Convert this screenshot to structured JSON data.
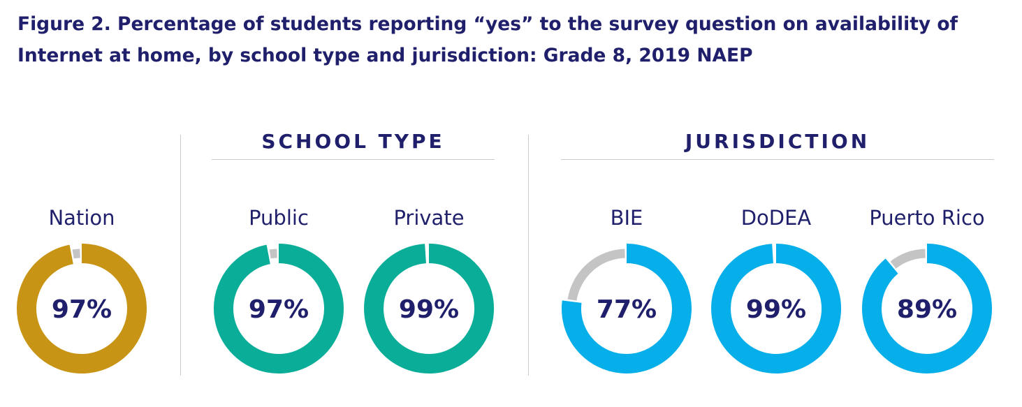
{
  "title": "Figure 2. Percentage of students reporting “yes” to the survey question on availability of Internet at home, by school type and jurisdiction: Grade 8, 2019 NAEP",
  "groups": {
    "school_type": "SCHOOL TYPE",
    "jurisdiction": "JURISDICTION"
  },
  "colors": {
    "text": "#1f1f6b",
    "remainder": "#c4c4c4",
    "nation": "#c89415",
    "school_type": "#0aae98",
    "jurisdiction": "#06aeea",
    "divider": "#c9cbd3"
  },
  "chart_data": {
    "type": "pie",
    "subtype": "donut",
    "title": "Figure 2. Percentage of students reporting “yes” to the survey question on availability of Internet at home, by school type and jurisdiction: Grade 8, 2019 NAEP",
    "categories": [
      "Nation",
      "Public",
      "Private",
      "BIE",
      "DoDEA",
      "Puerto Rico"
    ],
    "values": [
      97,
      97,
      99,
      77,
      99,
      89
    ],
    "value_labels": [
      "97%",
      "97%",
      "99%",
      "77%",
      "99%",
      "89%"
    ],
    "category_groups": [
      "",
      "SCHOOL TYPE",
      "SCHOOL TYPE",
      "JURISDICTION",
      "JURISDICTION",
      "JURISDICTION"
    ],
    "series_colors": [
      "#c89415",
      "#0aae98",
      "#0aae98",
      "#06aeea",
      "#06aeea",
      "#06aeea"
    ],
    "remainder_color": "#c4c4c4",
    "max": 100
  }
}
